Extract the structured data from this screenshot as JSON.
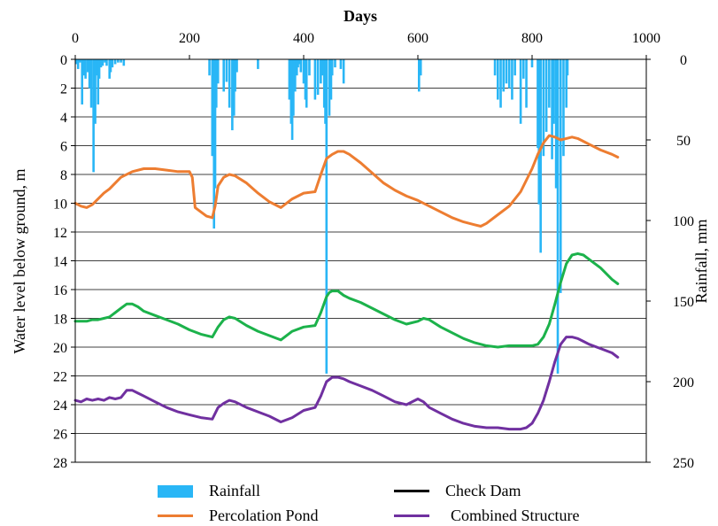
{
  "chart_data": {
    "type": "line",
    "title": "",
    "xlabel": "Days",
    "ylabel": "Water level below ground, m",
    "y2label": "Rainfall, mm",
    "xlim": [
      0,
      1000
    ],
    "ylim": [
      0,
      28
    ],
    "y2lim": [
      0,
      250
    ],
    "x_ticks": [
      0,
      200,
      400,
      600,
      800,
      1000
    ],
    "y_ticks": [
      0,
      2,
      4,
      6,
      8,
      10,
      12,
      14,
      16,
      18,
      20,
      22,
      24,
      26,
      28
    ],
    "y2_ticks": [
      0,
      50,
      100,
      150,
      200,
      250
    ],
    "gridlines": "horizontal",
    "x_axis_position": "top",
    "y_axis_inverted": true,
    "legend_position": "bottom",
    "colors": {
      "rainfall": "#29b6f6",
      "check_dam": "#1cb24b",
      "percolation_pond": "#ed7d31",
      "combined_structure": "#7030a0"
    },
    "legend": {
      "rainfall": "Rainfall",
      "check_dam": "Check Dam",
      "percolation_pond": "Percolation Pond",
      "combined_structure": "Combined Structure"
    },
    "rainfall": {
      "name": "Rainfall",
      "axis": "right",
      "x": [
        2,
        5,
        8,
        12,
        15,
        18,
        22,
        25,
        28,
        32,
        35,
        38,
        40,
        42,
        45,
        48,
        52,
        55,
        60,
        62,
        65,
        70,
        75,
        80,
        85,
        235,
        240,
        243,
        245,
        247,
        250,
        260,
        265,
        270,
        275,
        278,
        280,
        283,
        320,
        375,
        378,
        380,
        382,
        385,
        388,
        390,
        393,
        395,
        400,
        403,
        405,
        410,
        420,
        425,
        430,
        433,
        436,
        438,
        440,
        445,
        448,
        450,
        455,
        465,
        470,
        602,
        605,
        735,
        740,
        745,
        750,
        755,
        760,
        765,
        770,
        780,
        785,
        790,
        800,
        810,
        812,
        815,
        820,
        825,
        830,
        835,
        838,
        842,
        845,
        850,
        855,
        860,
        862
      ],
      "values": [
        3,
        6,
        2,
        28,
        10,
        12,
        8,
        18,
        30,
        70,
        40,
        10,
        28,
        12,
        5,
        4,
        2,
        4,
        12,
        8,
        5,
        3,
        2,
        2,
        4,
        10,
        60,
        105,
        80,
        30,
        15,
        20,
        14,
        30,
        44,
        35,
        20,
        8,
        6,
        25,
        40,
        50,
        35,
        20,
        10,
        5,
        3,
        8,
        15,
        25,
        30,
        10,
        25,
        22,
        15,
        10,
        30,
        40,
        195,
        35,
        25,
        10,
        5,
        6,
        15,
        20,
        10,
        10,
        25,
        30,
        20,
        15,
        18,
        25,
        10,
        40,
        12,
        30,
        5,
        55,
        90,
        120,
        60,
        45,
        30,
        62,
        40,
        80,
        195,
        145,
        60,
        30,
        10
      ]
    },
    "series": [
      {
        "name": "Check Dam",
        "axis": "left",
        "x": [
          0,
          10,
          20,
          30,
          40,
          50,
          60,
          70,
          80,
          90,
          100,
          110,
          120,
          140,
          160,
          180,
          200,
          220,
          240,
          250,
          260,
          270,
          280,
          300,
          320,
          340,
          360,
          380,
          400,
          420,
          430,
          440,
          445,
          450,
          460,
          470,
          480,
          500,
          520,
          540,
          560,
          580,
          600,
          610,
          620,
          640,
          660,
          680,
          700,
          720,
          740,
          760,
          780,
          800,
          810,
          820,
          830,
          840,
          850,
          860,
          870,
          880,
          890,
          900,
          920,
          940,
          950
        ],
        "values": [
          18.2,
          18.2,
          18.2,
          18.1,
          18.1,
          18.0,
          17.9,
          17.6,
          17.3,
          17.0,
          17.0,
          17.2,
          17.5,
          17.8,
          18.1,
          18.4,
          18.8,
          19.1,
          19.3,
          18.6,
          18.1,
          17.9,
          18.0,
          18.5,
          18.9,
          19.2,
          19.5,
          18.9,
          18.6,
          18.5,
          17.6,
          16.5,
          16.2,
          16.1,
          16.1,
          16.4,
          16.6,
          16.9,
          17.3,
          17.7,
          18.1,
          18.4,
          18.2,
          18.0,
          18.1,
          18.6,
          19.0,
          19.4,
          19.7,
          19.9,
          20.0,
          19.9,
          19.9,
          19.9,
          19.8,
          19.3,
          18.4,
          17.0,
          15.5,
          14.2,
          13.6,
          13.5,
          13.6,
          13.9,
          14.5,
          15.3,
          15.6
        ]
      },
      {
        "name": "Percolation Pond",
        "axis": "left",
        "x": [
          0,
          10,
          20,
          30,
          40,
          50,
          60,
          70,
          80,
          100,
          120,
          140,
          160,
          180,
          200,
          205,
          210,
          220,
          230,
          240,
          245,
          250,
          260,
          270,
          280,
          300,
          320,
          340,
          360,
          380,
          400,
          420,
          430,
          440,
          450,
          460,
          470,
          480,
          500,
          520,
          540,
          560,
          580,
          600,
          620,
          640,
          660,
          680,
          700,
          710,
          720,
          740,
          760,
          780,
          800,
          810,
          820,
          830,
          840,
          850,
          860,
          870,
          880,
          890,
          900,
          920,
          940,
          950
        ],
        "values": [
          10.0,
          10.2,
          10.3,
          10.1,
          9.7,
          9.3,
          9.0,
          8.6,
          8.2,
          7.8,
          7.6,
          7.6,
          7.7,
          7.8,
          7.8,
          8.2,
          10.3,
          10.6,
          10.9,
          11.0,
          10.2,
          8.8,
          8.2,
          8.0,
          8.1,
          8.6,
          9.3,
          9.9,
          10.3,
          9.7,
          9.3,
          9.2,
          8.0,
          6.9,
          6.6,
          6.4,
          6.4,
          6.6,
          7.2,
          7.9,
          8.6,
          9.1,
          9.5,
          9.8,
          10.2,
          10.6,
          11.0,
          11.3,
          11.5,
          11.6,
          11.4,
          10.8,
          10.2,
          9.2,
          7.6,
          6.6,
          5.8,
          5.3,
          5.4,
          5.6,
          5.5,
          5.4,
          5.5,
          5.7,
          5.9,
          6.3,
          6.6,
          6.8
        ]
      },
      {
        "name": "Combined Structure",
        "axis": "left",
        "x": [
          0,
          10,
          20,
          30,
          40,
          50,
          60,
          70,
          80,
          90,
          100,
          110,
          120,
          140,
          160,
          180,
          200,
          220,
          240,
          250,
          260,
          270,
          280,
          300,
          320,
          340,
          360,
          380,
          400,
          420,
          430,
          440,
          450,
          460,
          470,
          480,
          500,
          520,
          540,
          560,
          580,
          600,
          610,
          620,
          640,
          660,
          680,
          700,
          720,
          740,
          760,
          780,
          790,
          800,
          810,
          820,
          830,
          840,
          850,
          860,
          870,
          880,
          890,
          900,
          920,
          940,
          950
        ],
        "values": [
          23.7,
          23.8,
          23.6,
          23.7,
          23.6,
          23.7,
          23.5,
          23.6,
          23.5,
          23.0,
          23.0,
          23.2,
          23.4,
          23.8,
          24.2,
          24.5,
          24.7,
          24.9,
          25.0,
          24.2,
          23.9,
          23.7,
          23.8,
          24.2,
          24.5,
          24.8,
          25.2,
          24.9,
          24.4,
          24.2,
          23.4,
          22.4,
          22.1,
          22.1,
          22.2,
          22.4,
          22.7,
          23.0,
          23.4,
          23.8,
          24.0,
          23.6,
          23.8,
          24.2,
          24.6,
          25.0,
          25.3,
          25.5,
          25.6,
          25.6,
          25.7,
          25.7,
          25.6,
          25.3,
          24.6,
          23.7,
          22.4,
          21.0,
          19.8,
          19.3,
          19.3,
          19.4,
          19.6,
          19.8,
          20.1,
          20.4,
          20.7
        ]
      }
    ]
  }
}
